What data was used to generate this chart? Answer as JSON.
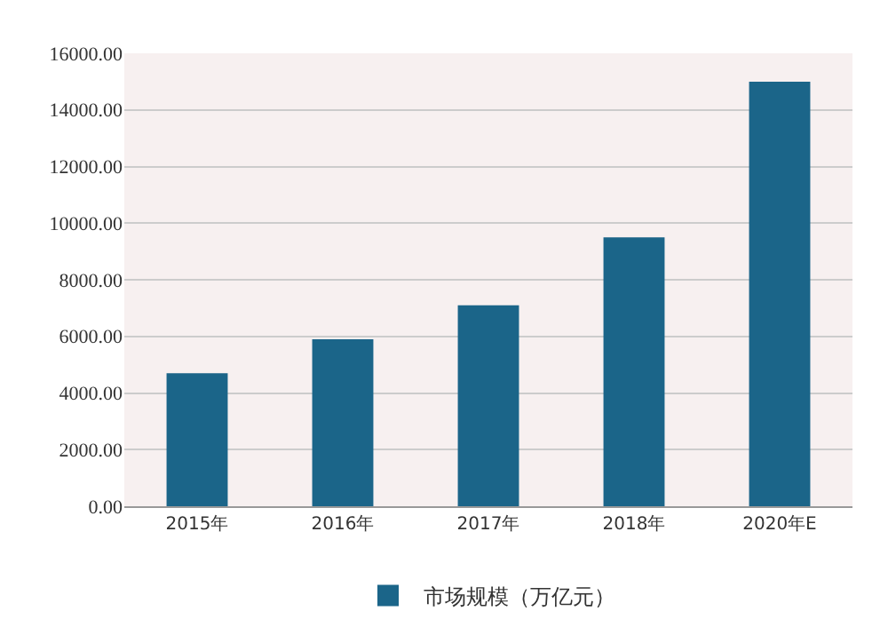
{
  "chart_data": {
    "type": "bar",
    "categories": [
      "2015年",
      "2016年",
      "2017年",
      "2018年",
      "2020年E"
    ],
    "series": [
      {
        "name": "市场规模（万亿元）",
        "color": "#1b6589",
        "values": [
          4700,
          5900,
          7100,
          9500,
          15000
        ]
      }
    ],
    "ylim": [
      0,
      16000
    ],
    "yticks": [
      {
        "value": 0,
        "label": "0.00"
      },
      {
        "value": 2000,
        "label": "2000.00"
      },
      {
        "value": 4000,
        "label": "4000.00"
      },
      {
        "value": 6000,
        "label": "6000.00"
      },
      {
        "value": 8000,
        "label": "8000.00"
      },
      {
        "value": 10000,
        "label": "10000.00"
      },
      {
        "value": 12000,
        "label": "12000.00"
      },
      {
        "value": 14000,
        "label": "14000.00"
      },
      {
        "value": 16000,
        "label": "16000.00"
      }
    ],
    "grid": "y",
    "legend": "bottom"
  }
}
